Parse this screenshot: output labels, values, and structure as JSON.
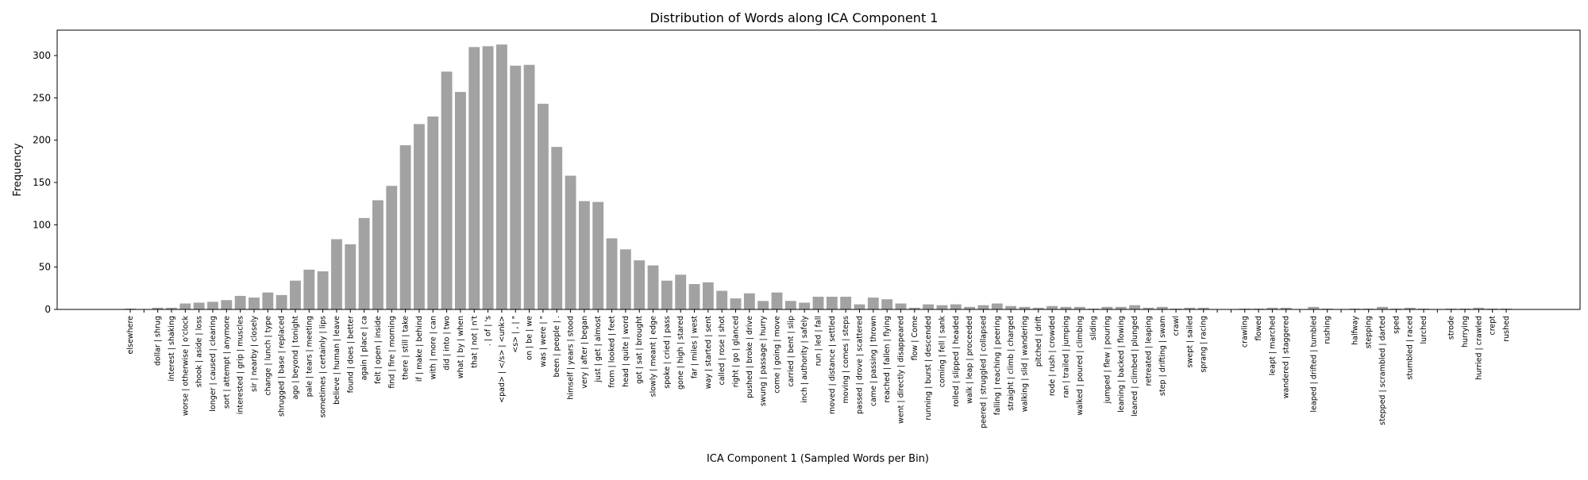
{
  "chart_data": {
    "type": "bar",
    "title": "Distribution of Words along ICA Component 1",
    "xlabel": "ICA Component 1 (Sampled Words per Bin)",
    "ylabel": "Frequency",
    "ylim": [
      0,
      330
    ],
    "yticks": [
      0,
      50,
      100,
      150,
      200,
      250,
      300
    ],
    "grid": false,
    "legend": "none",
    "bar_color": "#a2a2a2",
    "categories": [
      "elsewhere",
      "",
      "dollar | shrug",
      "interest | shaking",
      "worse | otherwise | o'clock",
      "shook | aside | loss",
      "longer | caused | clearing",
      "sort | attempt | anymore",
      "interested | grip | muscles",
      "sir | nearby | closely",
      "change | lunch | type",
      "shrugged | base | replaced",
      "ago | beyond | tonight",
      "pale | tears | meeting",
      "sometimes | certainly | lips",
      "believe | human | leave",
      "found | does | better",
      "again | place | ca",
      "felt | open | inside",
      "find | fire | morning",
      "there | still | take",
      "if | make | behind",
      "with | more | can",
      "did | into | two",
      "what | by | when",
      "that | not | n't",
      ". | of | 's",
      "<pad> | </s> | <unk>",
      "<s> | , | \"",
      "on | be | we",
      "was | were | \"",
      "been | people | .",
      "himself | years | stood",
      "very | after | began",
      "just | get | almost",
      "from | looked | feet",
      "head | quite | word",
      "got | sat | brought",
      "slowly | meant | edge",
      "spoke | cried | pass",
      "gone | high | stared",
      "far | miles | west",
      "way | started | sent",
      "called | rose | shot",
      "right | go | glanced",
      "pushed | broke | drive",
      "swung | passage | hurry",
      "come | going | move",
      "carried | bent | slip",
      "inch | authority | safely",
      "run | led | fall",
      "moved | distance | settled",
      "moving | comes | steps",
      "passed | drove | scattered",
      "came | passing | thrown",
      "reached | fallen | flying",
      "went | directly | disappeared",
      "flow | Come",
      "running | burst | descended",
      "coming | fell | sank",
      "rolled | slipped | headed",
      "walk | leap | proceeded",
      "peered | struggled | collapsed",
      "falling | reaching | peering",
      "straight | climb | charged",
      "walking | slid | wandering",
      "pitched | drift",
      "rode | rush | crowded",
      "ran | trailed | jumping",
      "walked | poured | climbing",
      "sliding",
      "jumped | flew | pouring",
      "leaning | backed | flowing",
      "leaned | climbed | plunged",
      "retreated | leaping",
      "step | drifting | swam",
      "crawl",
      "swept | sailed",
      "sprang | racing",
      "",
      "",
      "crawling",
      "flowed",
      "leapt | marched",
      "wandered | staggered",
      "",
      "leaped | drifted | tumbled",
      "rushing",
      "",
      "halfway",
      "stepping",
      "stepped | scrambled | darted",
      "sped",
      "stumbled | raced",
      "lurched",
      "",
      "strode",
      "hurrying",
      "hurried | crawled",
      "crept",
      "rushed"
    ],
    "values": [
      1,
      0,
      2,
      2,
      7,
      8,
      9,
      11,
      16,
      14,
      20,
      17,
      34,
      47,
      45,
      83,
      77,
      108,
      129,
      146,
      194,
      219,
      228,
      281,
      257,
      310,
      311,
      313,
      288,
      289,
      243,
      192,
      158,
      128,
      127,
      84,
      71,
      58,
      52,
      34,
      41,
      30,
      32,
      22,
      13,
      19,
      10,
      20,
      10,
      8,
      15,
      15,
      15,
      6,
      14,
      12,
      7,
      2,
      6,
      5,
      6,
      3,
      5,
      7,
      4,
      3,
      2,
      4,
      3,
      3,
      1,
      3,
      3,
      5,
      2,
      3,
      1,
      2,
      2,
      0,
      0,
      1,
      1,
      2,
      2,
      0,
      3,
      1,
      0,
      1,
      1,
      3,
      1,
      2,
      1,
      0,
      1,
      1,
      2,
      1,
      1
    ]
  }
}
